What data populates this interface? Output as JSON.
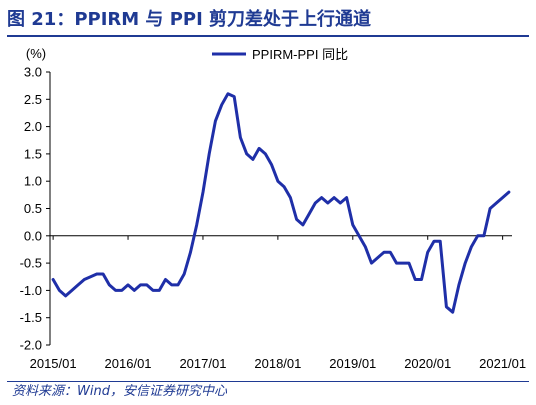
{
  "figure": {
    "title": "图 21：PPIRM 与 PPI 剪刀差处于上行通道",
    "source": "资料来源：Wind，安信证券研究中心"
  },
  "colors": {
    "series": "#1f2fa8",
    "title": "#1f3a93",
    "axis": "#000000"
  },
  "chart_data": {
    "type": "line",
    "ylabel": "(%)",
    "xlabel": "",
    "ylim": [
      -2.0,
      3.0
    ],
    "yticks": [
      "3.0",
      "2.5",
      "2.0",
      "1.5",
      "1.0",
      "0.5",
      "0.0",
      "-0.5",
      "-1.0",
      "-1.5",
      "-2.0"
    ],
    "ytick_values": [
      3.0,
      2.5,
      2.0,
      1.5,
      1.0,
      0.5,
      0.0,
      -0.5,
      -1.0,
      -1.5,
      -2.0
    ],
    "xticks": [
      "2015/01",
      "2016/01",
      "2017/01",
      "2018/01",
      "2019/01",
      "2020/01",
      "2021/01"
    ],
    "xtick_index": [
      0,
      12,
      24,
      36,
      48,
      60,
      72
    ],
    "grid": false,
    "legend": "top",
    "series": [
      {
        "name": "PPIRM-PPI 同比",
        "x_start": "2015/01",
        "frequency": "monthly",
        "values": [
          -0.8,
          -1.0,
          -1.1,
          -1.0,
          -0.9,
          -0.8,
          -0.75,
          -0.7,
          -0.7,
          -0.9,
          -1.0,
          -1.0,
          -0.9,
          -1.0,
          -0.9,
          -0.9,
          -1.0,
          -1.0,
          -0.8,
          -0.9,
          -0.9,
          -0.7,
          -0.3,
          0.2,
          0.8,
          1.5,
          2.1,
          2.4,
          2.6,
          2.55,
          1.8,
          1.5,
          1.4,
          1.6,
          1.5,
          1.3,
          1.0,
          0.9,
          0.7,
          0.3,
          0.2,
          0.4,
          0.6,
          0.7,
          0.6,
          0.7,
          0.6,
          0.7,
          0.2,
          0.0,
          -0.2,
          -0.5,
          -0.4,
          -0.3,
          -0.3,
          -0.5,
          -0.5,
          -0.5,
          -0.8,
          -0.8,
          -0.3,
          -0.1,
          -0.1,
          -1.3,
          -1.4,
          -0.9,
          -0.5,
          -0.2,
          0.0,
          0.0,
          0.5,
          0.6,
          0.7,
          0.8
        ]
      }
    ]
  }
}
